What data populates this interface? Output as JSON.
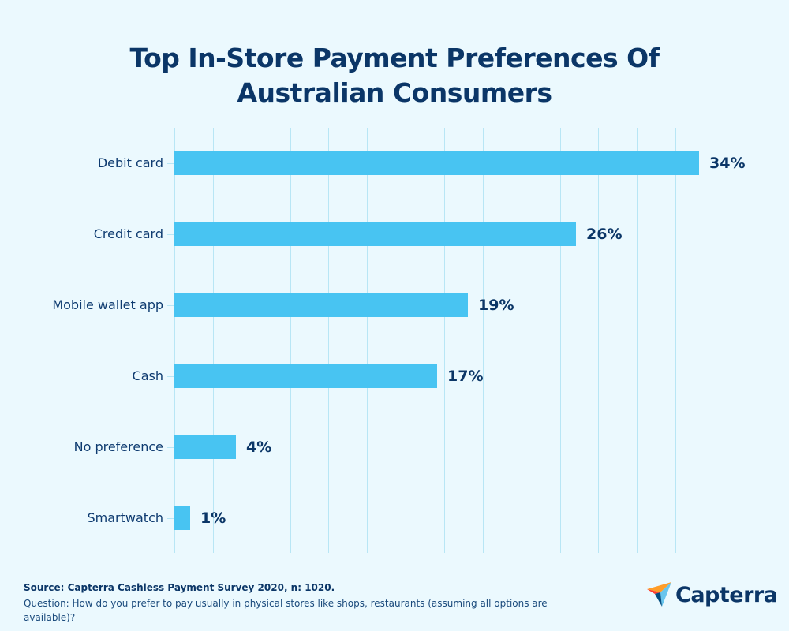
{
  "title_line1": "Top In-Store Payment Preferences Of",
  "title_line2": "Australian Consumers",
  "chart_data": {
    "type": "bar",
    "orientation": "horizontal",
    "title": "Top In-Store Payment Preferences Of Australian Consumers",
    "categories": [
      "Debit card",
      "Credit card",
      "Mobile wallet app",
      "Cash",
      "No preference",
      "Smartwatch"
    ],
    "values": [
      34,
      26,
      19,
      17,
      4,
      1
    ],
    "value_labels": [
      "34%",
      "26%",
      "19%",
      "17%",
      "4%",
      "1%"
    ],
    "unit": "%",
    "xlabel": "",
    "ylabel": "",
    "xlim": [
      0,
      35
    ],
    "grid": true,
    "legend": null,
    "bar_color": "#48c4f2"
  },
  "footer": {
    "source": "Source: Capterra Cashless Payment Survey 2020, n: 1020.",
    "question": "Question: How do you prefer to pay usually in physical stores like shops, restaurants (assuming all options are available)?"
  },
  "logo": {
    "text": "Capterra"
  },
  "colors": {
    "background": "#ebf9fe",
    "bar": "#48c4f2",
    "text": "#0b3667",
    "grid": "#b8e6f5"
  }
}
